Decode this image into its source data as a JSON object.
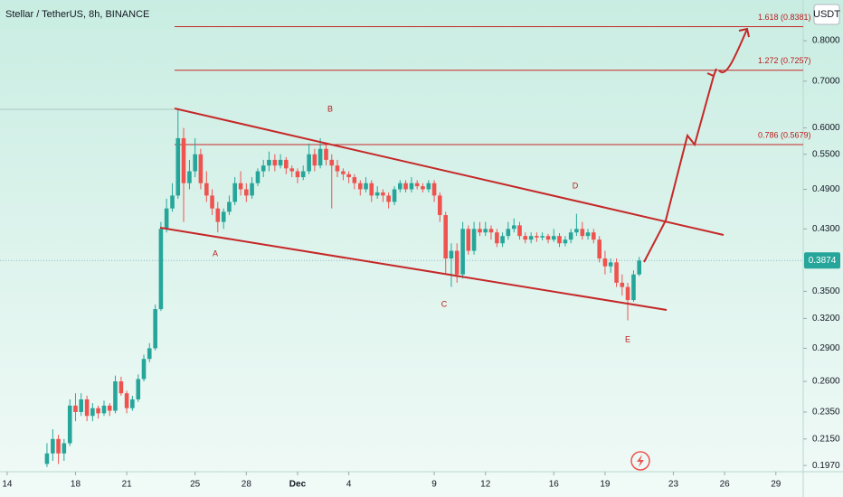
{
  "chart_data": {
    "type": "candlestick",
    "title": "Stellar / TetherUS, 8h, BINANCE",
    "currency": "USDT",
    "log_scale": true,
    "up_color": "#26a69a",
    "down_color": "#ef5350",
    "xlim": [
      13.58,
      60.6
    ],
    "ylim": [
      0.193,
      0.915
    ],
    "xticks": [
      {
        "value": 14,
        "label": "14"
      },
      {
        "value": 18,
        "label": "18"
      },
      {
        "value": 21,
        "label": "21"
      },
      {
        "value": 25,
        "label": "25"
      },
      {
        "value": 28,
        "label": "28"
      },
      {
        "value": 31,
        "label": "Dec"
      },
      {
        "value": 34,
        "label": "4"
      },
      {
        "value": 39,
        "label": "9"
      },
      {
        "value": 42,
        "label": "12"
      },
      {
        "value": 46,
        "label": "16"
      },
      {
        "value": 49,
        "label": "19"
      },
      {
        "value": 53,
        "label": "23"
      },
      {
        "value": 56,
        "label": "26"
      },
      {
        "value": 59,
        "label": "29"
      }
    ],
    "yticks": [
      {
        "value": 0.8,
        "label": "0.8000"
      },
      {
        "value": 0.7,
        "label": "0.7000"
      },
      {
        "value": 0.6,
        "label": "0.6000"
      },
      {
        "value": 0.55,
        "label": "0.5500"
      },
      {
        "value": 0.49,
        "label": "0.4900"
      },
      {
        "value": 0.43,
        "label": "0.4300"
      },
      {
        "value": 0.35,
        "label": "0.3500"
      },
      {
        "value": 0.32,
        "label": "0.3200"
      },
      {
        "value": 0.29,
        "label": "0.2900"
      },
      {
        "value": 0.26,
        "label": "0.2600"
      },
      {
        "value": 0.235,
        "label": "0.2350"
      },
      {
        "value": 0.215,
        "label": "0.2150"
      },
      {
        "value": 0.197,
        "label": "0.1970"
      }
    ],
    "last_price": 0.3874,
    "fib_levels": [
      {
        "value": 0.8381,
        "label": "1.618 (0.8381)"
      },
      {
        "value": 0.7257,
        "label": "1.272 (0.7257)"
      },
      {
        "value": 0.5679,
        "label": "0.786 (0.5679)"
      }
    ],
    "wave_labels": [
      "A",
      "B",
      "C",
      "D",
      "E"
    ],
    "x": [
      16.33,
      16.67,
      17,
      17.33,
      17.67,
      18,
      18.33,
      18.67,
      19,
      19.33,
      19.67,
      20,
      20.33,
      20.67,
      21,
      21.33,
      21.67,
      22,
      22.33,
      22.67,
      23,
      23.33,
      23.67,
      24,
      24.33,
      24.67,
      25,
      25.33,
      25.67,
      26,
      26.33,
      26.67,
      27,
      27.33,
      27.67,
      28,
      28.33,
      28.67,
      29,
      29.33,
      29.67,
      30,
      30.33,
      30.67,
      31,
      31.33,
      31.67,
      32,
      32.33,
      32.67,
      33,
      33.33,
      33.67,
      34,
      34.33,
      34.67,
      35,
      35.33,
      35.67,
      36,
      36.33,
      36.67,
      37,
      37.33,
      37.67,
      38,
      38.33,
      38.67,
      39,
      39.33,
      39.67,
      40,
      40.33,
      40.67,
      41,
      41.33,
      41.67,
      42,
      42.33,
      42.67,
      43,
      43.33,
      43.67,
      44,
      44.33,
      44.67,
      45,
      45.33,
      45.67,
      46,
      46.33,
      46.67,
      47,
      47.33,
      47.67,
      48,
      48.33,
      48.67,
      49,
      49.33,
      49.67,
      50,
      50.33,
      50.67,
      51
    ],
    "ohlc": [
      [
        0.198,
        0.212,
        0.196,
        0.205
      ],
      [
        0.205,
        0.222,
        0.2,
        0.215
      ],
      [
        0.215,
        0.218,
        0.198,
        0.205
      ],
      [
        0.205,
        0.215,
        0.2,
        0.212
      ],
      [
        0.212,
        0.245,
        0.21,
        0.24
      ],
      [
        0.24,
        0.25,
        0.228,
        0.235
      ],
      [
        0.235,
        0.25,
        0.232,
        0.245
      ],
      [
        0.245,
        0.248,
        0.228,
        0.232
      ],
      [
        0.232,
        0.242,
        0.228,
        0.238
      ],
      [
        0.238,
        0.24,
        0.23,
        0.234
      ],
      [
        0.234,
        0.244,
        0.232,
        0.24
      ],
      [
        0.24,
        0.242,
        0.232,
        0.236
      ],
      [
        0.236,
        0.265,
        0.234,
        0.26
      ],
      [
        0.26,
        0.264,
        0.248,
        0.25
      ],
      [
        0.25,
        0.252,
        0.234,
        0.238
      ],
      [
        0.238,
        0.248,
        0.236,
        0.245
      ],
      [
        0.245,
        0.266,
        0.243,
        0.262
      ],
      [
        0.262,
        0.284,
        0.26,
        0.28
      ],
      [
        0.28,
        0.295,
        0.277,
        0.29
      ],
      [
        0.29,
        0.335,
        0.288,
        0.33
      ],
      [
        0.33,
        0.44,
        0.328,
        0.43
      ],
      [
        0.43,
        0.475,
        0.425,
        0.46
      ],
      [
        0.46,
        0.5,
        0.455,
        0.48
      ],
      [
        0.48,
        0.64,
        0.475,
        0.58
      ],
      [
        0.58,
        0.6,
        0.44,
        0.5
      ],
      [
        0.5,
        0.54,
        0.49,
        0.52
      ],
      [
        0.52,
        0.58,
        0.51,
        0.55
      ],
      [
        0.55,
        0.56,
        0.49,
        0.5
      ],
      [
        0.5,
        0.52,
        0.47,
        0.48
      ],
      [
        0.48,
        0.49,
        0.45,
        0.46
      ],
      [
        0.46,
        0.47,
        0.425,
        0.44
      ],
      [
        0.44,
        0.46,
        0.43,
        0.455
      ],
      [
        0.455,
        0.48,
        0.45,
        0.47
      ],
      [
        0.47,
        0.51,
        0.465,
        0.5
      ],
      [
        0.5,
        0.52,
        0.48,
        0.49
      ],
      [
        0.49,
        0.5,
        0.47,
        0.48
      ],
      [
        0.48,
        0.51,
        0.475,
        0.5
      ],
      [
        0.5,
        0.525,
        0.495,
        0.52
      ],
      [
        0.52,
        0.54,
        0.51,
        0.53
      ],
      [
        0.53,
        0.555,
        0.52,
        0.54
      ],
      [
        0.54,
        0.55,
        0.52,
        0.53
      ],
      [
        0.53,
        0.55,
        0.525,
        0.54
      ],
      [
        0.54,
        0.545,
        0.515,
        0.525
      ],
      [
        0.525,
        0.53,
        0.51,
        0.52
      ],
      [
        0.52,
        0.525,
        0.5,
        0.51
      ],
      [
        0.51,
        0.53,
        0.505,
        0.52
      ],
      [
        0.52,
        0.57,
        0.515,
        0.55
      ],
      [
        0.55,
        0.56,
        0.52,
        0.53
      ],
      [
        0.53,
        0.58,
        0.525,
        0.56
      ],
      [
        0.56,
        0.57,
        0.53,
        0.54
      ],
      [
        0.54,
        0.55,
        0.46,
        0.53
      ],
      [
        0.53,
        0.54,
        0.51,
        0.52
      ],
      [
        0.52,
        0.525,
        0.505,
        0.515
      ],
      [
        0.515,
        0.52,
        0.5,
        0.51
      ],
      [
        0.51,
        0.515,
        0.49,
        0.5
      ],
      [
        0.5,
        0.505,
        0.48,
        0.49
      ],
      [
        0.49,
        0.51,
        0.485,
        0.5
      ],
      [
        0.5,
        0.505,
        0.47,
        0.48
      ],
      [
        0.48,
        0.495,
        0.475,
        0.485
      ],
      [
        0.485,
        0.49,
        0.47,
        0.48
      ],
      [
        0.48,
        0.485,
        0.46,
        0.47
      ],
      [
        0.47,
        0.495,
        0.465,
        0.49
      ],
      [
        0.49,
        0.505,
        0.485,
        0.5
      ],
      [
        0.5,
        0.505,
        0.485,
        0.49
      ],
      [
        0.49,
        0.51,
        0.485,
        0.5
      ],
      [
        0.5,
        0.505,
        0.49,
        0.495
      ],
      [
        0.495,
        0.5,
        0.485,
        0.49
      ],
      [
        0.49,
        0.505,
        0.485,
        0.5
      ],
      [
        0.5,
        0.505,
        0.47,
        0.48
      ],
      [
        0.48,
        0.485,
        0.44,
        0.45
      ],
      [
        0.45,
        0.455,
        0.37,
        0.39
      ],
      [
        0.39,
        0.41,
        0.355,
        0.4
      ],
      [
        0.4,
        0.41,
        0.36,
        0.37
      ],
      [
        0.37,
        0.44,
        0.365,
        0.43
      ],
      [
        0.43,
        0.435,
        0.395,
        0.4
      ],
      [
        0.4,
        0.44,
        0.395,
        0.43
      ],
      [
        0.43,
        0.44,
        0.42,
        0.425
      ],
      [
        0.425,
        0.44,
        0.42,
        0.43
      ],
      [
        0.43,
        0.435,
        0.415,
        0.425
      ],
      [
        0.425,
        0.43,
        0.405,
        0.41
      ],
      [
        0.41,
        0.425,
        0.405,
        0.42
      ],
      [
        0.42,
        0.44,
        0.415,
        0.43
      ],
      [
        0.43,
        0.445,
        0.425,
        0.435
      ],
      [
        0.435,
        0.44,
        0.415,
        0.42
      ],
      [
        0.42,
        0.425,
        0.41,
        0.415
      ],
      [
        0.415,
        0.425,
        0.41,
        0.42
      ],
      [
        0.42,
        0.425,
        0.412,
        0.418
      ],
      [
        0.418,
        0.425,
        0.414,
        0.42
      ],
      [
        0.42,
        0.423,
        0.41,
        0.415
      ],
      [
        0.415,
        0.43,
        0.412,
        0.42
      ],
      [
        0.42,
        0.424,
        0.405,
        0.41
      ],
      [
        0.41,
        0.42,
        0.406,
        0.415
      ],
      [
        0.415,
        0.43,
        0.41,
        0.425
      ],
      [
        0.425,
        0.452,
        0.42,
        0.43
      ],
      [
        0.43,
        0.44,
        0.415,
        0.42
      ],
      [
        0.42,
        0.43,
        0.415,
        0.425
      ],
      [
        0.425,
        0.43,
        0.41,
        0.415
      ],
      [
        0.415,
        0.42,
        0.385,
        0.39
      ],
      [
        0.39,
        0.4,
        0.37,
        0.38
      ],
      [
        0.38,
        0.39,
        0.372,
        0.385
      ],
      [
        0.385,
        0.39,
        0.355,
        0.36
      ],
      [
        0.36,
        0.37,
        0.345,
        0.355
      ],
      [
        0.355,
        0.36,
        0.318,
        0.34
      ],
      [
        0.34,
        0.375,
        0.338,
        0.37
      ],
      [
        0.37,
        0.392,
        0.368,
        0.3874
      ]
    ]
  }
}
